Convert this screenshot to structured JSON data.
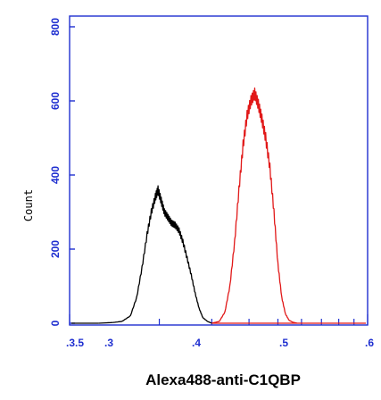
{
  "chart_data": {
    "type": "line",
    "xlabel": "Alexa488-anti-C1QBP",
    "ylabel": "Count",
    "x_scale": "log",
    "xlim": [
      100000,
      1000000
    ],
    "ylim": [
      0,
      800
    ],
    "y_ticks": [
      "0",
      "200",
      "400",
      "600",
      "800"
    ],
    "x_tick_labels": [
      ".3.5",
      ".3",
      ".4",
      ".5",
      ".6"
    ],
    "series": [
      {
        "color": "#000000",
        "values": [
          [
            125000,
            0
          ],
          [
            140000,
            2
          ],
          [
            150000,
            5
          ],
          [
            160000,
            20
          ],
          [
            168000,
            70
          ],
          [
            175000,
            150
          ],
          [
            182000,
            240
          ],
          [
            188000,
            300
          ],
          [
            194000,
            340
          ],
          [
            198000,
            360
          ],
          [
            203000,
            330
          ],
          [
            208000,
            300
          ],
          [
            214000,
            285
          ],
          [
            220000,
            270
          ],
          [
            226000,
            265
          ],
          [
            233000,
            250
          ],
          [
            240000,
            220
          ],
          [
            248000,
            175
          ],
          [
            256000,
            130
          ],
          [
            264000,
            80
          ],
          [
            272000,
            40
          ],
          [
            280000,
            15
          ],
          [
            290000,
            5
          ],
          [
            300000,
            0
          ]
        ]
      },
      {
        "color": "#e11818",
        "values": [
          [
            300000,
            0
          ],
          [
            318000,
            5
          ],
          [
            332000,
            30
          ],
          [
            345000,
            100
          ],
          [
            358000,
            220
          ],
          [
            370000,
            360
          ],
          [
            382000,
            480
          ],
          [
            394000,
            560
          ],
          [
            406000,
            600
          ],
          [
            418000,
            620
          ],
          [
            430000,
            590
          ],
          [
            442000,
            550
          ],
          [
            455000,
            500
          ],
          [
            470000,
            420
          ],
          [
            485000,
            300
          ],
          [
            500000,
            160
          ],
          [
            515000,
            70
          ],
          [
            530000,
            25
          ],
          [
            545000,
            8
          ],
          [
            560000,
            3
          ],
          [
            580000,
            0
          ]
        ]
      }
    ]
  }
}
